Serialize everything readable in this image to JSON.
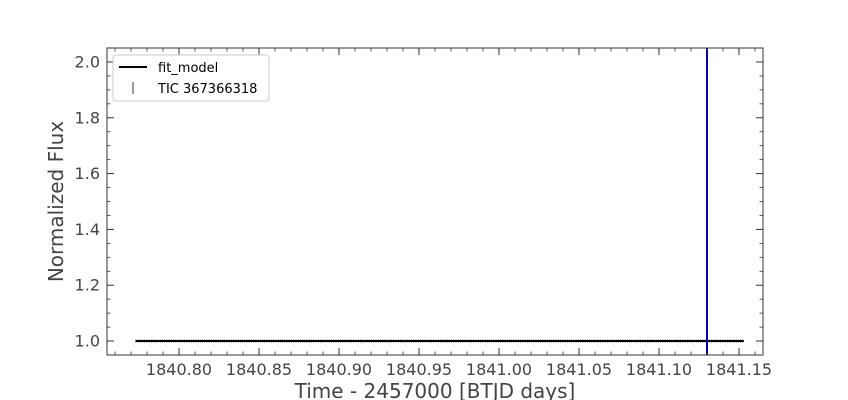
{
  "chart_data": {
    "type": "line",
    "title": "",
    "xlabel": "Time - 2457000 [BTJD days]",
    "ylabel": "Normalized Flux",
    "xlim": [
      1840.755,
      1841.165
    ],
    "ylim": [
      0.95,
      2.05
    ],
    "xticks": [
      1840.8,
      1840.85,
      1840.9,
      1840.95,
      1841.0,
      1841.05,
      1841.1,
      1841.15
    ],
    "xtick_labels": [
      "1840.80",
      "1840.85",
      "1840.90",
      "1840.95",
      "1841.00",
      "1841.05",
      "1841.10",
      "1841.15"
    ],
    "yticks": [
      1.0,
      1.2,
      1.4,
      1.6,
      1.8,
      2.0
    ],
    "ytick_labels": [
      "1.0",
      "1.2",
      "1.4",
      "1.6",
      "1.8",
      "2.0"
    ],
    "grid": false,
    "legend_position": "top-left",
    "series": [
      {
        "name": "fit_model",
        "style": "line",
        "color": "#000000",
        "x": [
          1840.773,
          1841.153
        ],
        "y": [
          1.0,
          1.0
        ]
      },
      {
        "name": "TIC 367366318",
        "style": "marker",
        "color": "#000000",
        "x": [
          1840.773,
          1841.153
        ],
        "y": [
          1.0,
          1.0
        ]
      }
    ],
    "vline": {
      "x": 1841.13,
      "color": "#0000aa"
    }
  }
}
